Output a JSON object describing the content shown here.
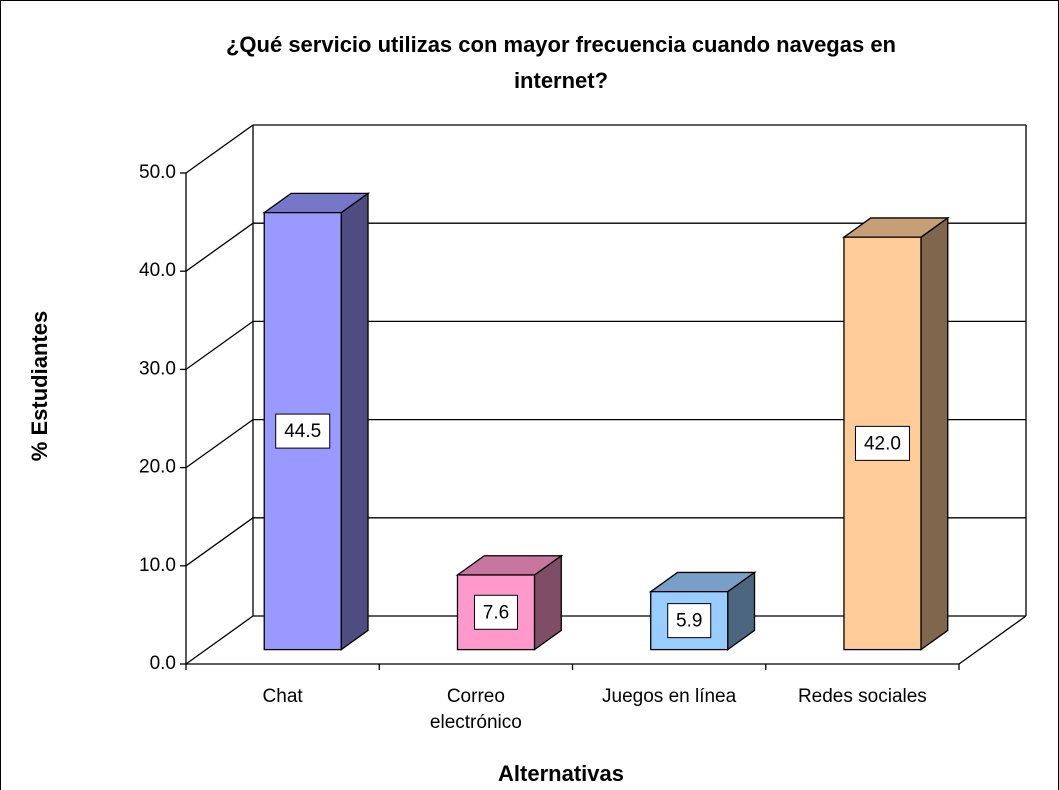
{
  "chart_data": {
    "type": "bar3d",
    "title": "¿Qué servicio utilizas con mayor frecuencia cuando navegas en internet?",
    "x_label": "Alternativas",
    "y_label": "% Estudiantes",
    "categories": [
      "Chat",
      "Correo electrónico",
      "Juegos en línea",
      "Redes sociales"
    ],
    "values": [
      44.5,
      7.6,
      5.9,
      42.0
    ],
    "value_labels": [
      "44.5",
      "7.6",
      "5.9",
      "42.0"
    ],
    "colors": [
      "#9999ff",
      "#ff99cc",
      "#99ccff",
      "#ffcc99"
    ],
    "ylim": [
      0,
      50
    ],
    "yticks": [
      {
        "value": 0,
        "label": "0.0"
      },
      {
        "value": 10,
        "label": "10.0"
      },
      {
        "value": 20,
        "label": "20.0"
      },
      {
        "value": 30,
        "label": "30.0"
      },
      {
        "value": 40,
        "label": "40.0"
      },
      {
        "value": 50,
        "label": "50.0"
      }
    ],
    "grid": true
  }
}
